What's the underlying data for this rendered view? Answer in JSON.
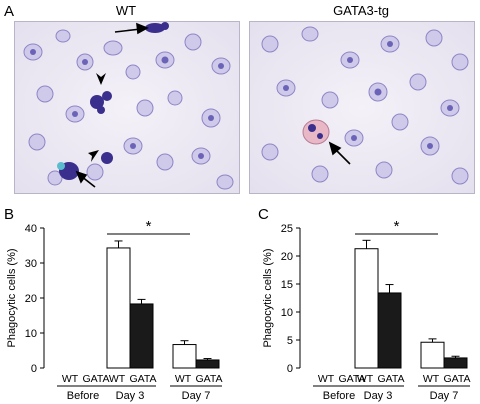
{
  "panel_a": {
    "letter": "A",
    "images": [
      {
        "title": "WT",
        "description": "Micrograph of stained WT cells; arrows and arrowheads mark phagocytic cells"
      },
      {
        "title": "GATA3-tg",
        "description": "Micrograph of stained GATA3-tg cells; arrow marks a phagocytic cell"
      }
    ]
  },
  "chart_data": [
    {
      "panel": "B",
      "type": "bar",
      "ylabel": "Phagocytic cells (%)",
      "ylim": [
        0,
        40
      ],
      "yticks": [
        0,
        10,
        20,
        30,
        40
      ],
      "groups": [
        "Before",
        "Day 3",
        "Day 7"
      ],
      "series_labels": [
        "WT",
        "GATA"
      ],
      "series": [
        {
          "name": "WT",
          "fill": "#ffffff",
          "values": [
            0,
            34.3,
            6.7
          ],
          "errors": [
            0,
            2.0,
            1.1
          ]
        },
        {
          "name": "GATA",
          "fill": "#1a1a1a",
          "values": [
            0,
            18.3,
            2.3
          ],
          "errors": [
            0,
            1.3,
            0.4
          ]
        }
      ],
      "significance": {
        "marker": "*",
        "group": "Day 3"
      }
    },
    {
      "panel": "C",
      "type": "bar",
      "ylabel": "Phagocytic cells (%)",
      "ylim": [
        0,
        25
      ],
      "yticks": [
        0,
        5,
        10,
        15,
        20,
        25
      ],
      "groups": [
        "Before",
        "Day 3",
        "Day 7"
      ],
      "series_labels": [
        "WT",
        "GATA"
      ],
      "series": [
        {
          "name": "WT",
          "fill": "#ffffff",
          "values": [
            0,
            21.3,
            4.6
          ],
          "errors": [
            0,
            1.5,
            0.6
          ]
        },
        {
          "name": "GATA",
          "fill": "#1a1a1a",
          "values": [
            0,
            13.4,
            1.8
          ],
          "errors": [
            0,
            1.5,
            0.3
          ]
        }
      ],
      "significance": {
        "marker": "*",
        "group": "Day 3"
      }
    }
  ]
}
